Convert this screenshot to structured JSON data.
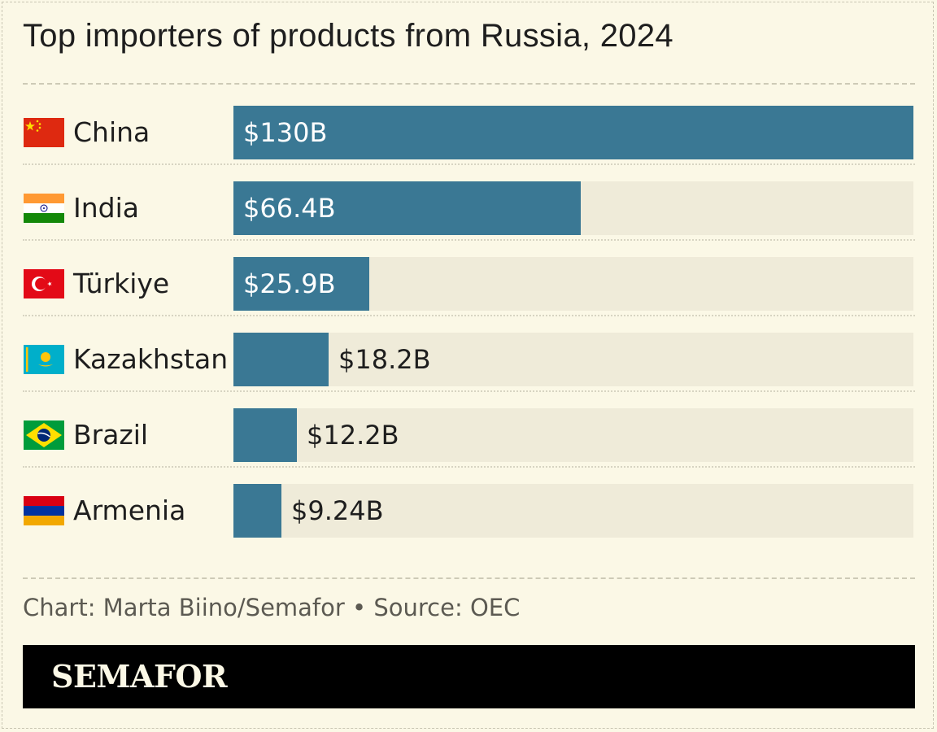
{
  "title": "Top importers of products from Russia, 2024",
  "source": "Chart: Marta Biino/Semafor • Source: OEC",
  "brand": "SEMAFOR",
  "colors": {
    "background": "#fbf8e6",
    "bar": "#3a7894",
    "track": "#efebd9",
    "brand_bar": "#000000"
  },
  "chart_data": {
    "type": "bar",
    "orientation": "horizontal",
    "title": "Top importers of products from Russia, 2024",
    "categories": [
      "China",
      "India",
      "Türkiye",
      "Kazakhstan",
      "Brazil",
      "Armenia"
    ],
    "values": [
      130,
      66.4,
      25.9,
      18.2,
      12.2,
      9.24
    ],
    "value_labels": [
      "$130B",
      "$66.4B",
      "$25.9B",
      "$18.2B",
      "$12.2B",
      "$9.24B"
    ],
    "unit": "billion USD",
    "xlim": [
      0,
      130
    ],
    "flags": [
      "china-flag-icon",
      "india-flag-icon",
      "turkiye-flag-icon",
      "kazakhstan-flag-icon",
      "brazil-flag-icon",
      "armenia-flag-icon"
    ],
    "grid": false,
    "legend": "none"
  }
}
